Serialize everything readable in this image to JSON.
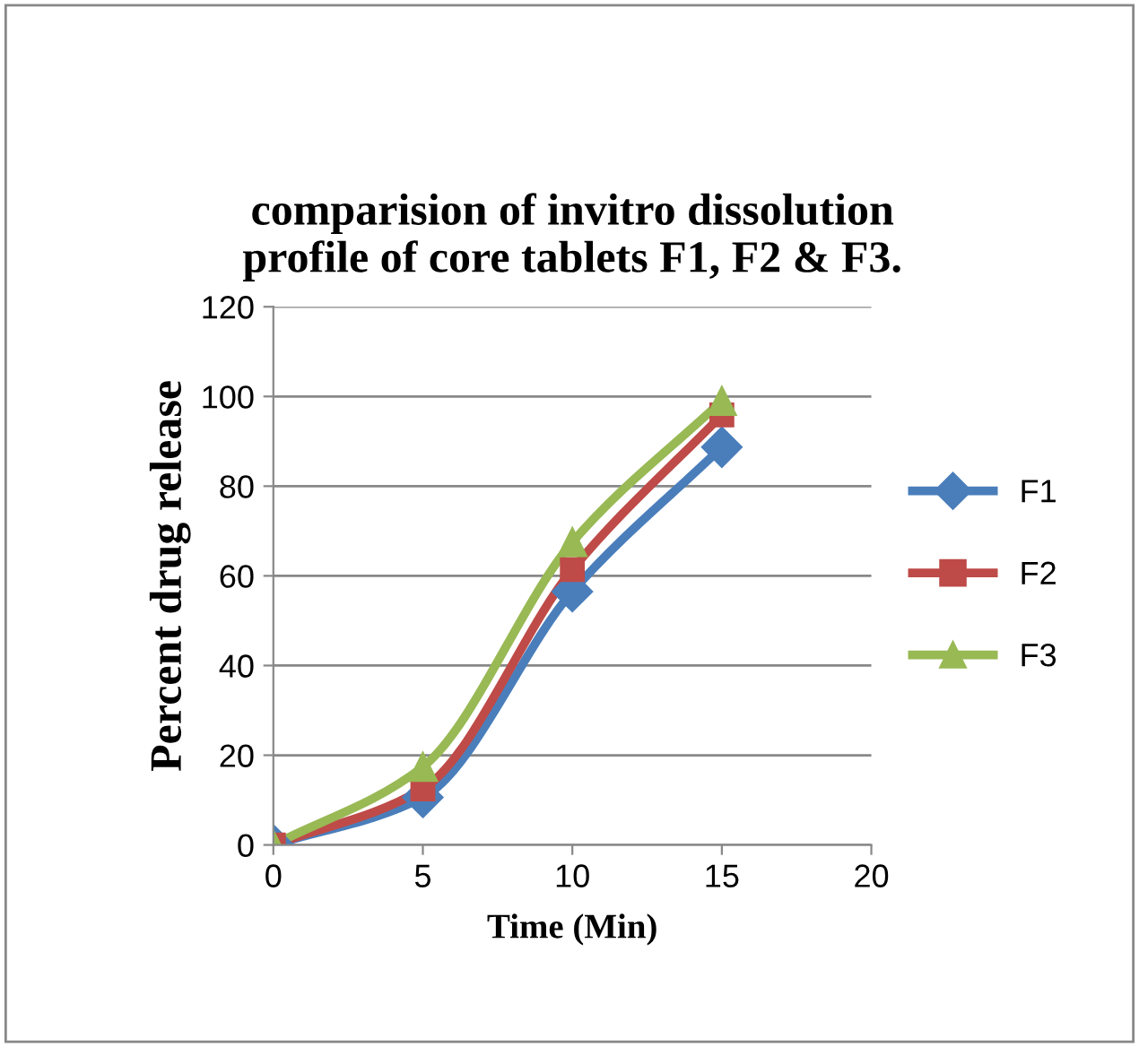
{
  "chart_data": {
    "type": "line",
    "title": "comparision of invitro dissolution\nprofile of core tablets F1, F2 & F3.",
    "xlabel": "Time (Min)",
    "ylabel": "Percent drug release",
    "x": [
      0,
      5,
      10,
      15
    ],
    "xlim": [
      0,
      20
    ],
    "xticks": [
      0,
      5,
      10,
      15,
      20
    ],
    "ylim": [
      0,
      120
    ],
    "yticks": [
      0,
      20,
      40,
      60,
      80,
      100,
      120
    ],
    "grid": "y",
    "legend": "right",
    "series": [
      {
        "name": "F1",
        "color": "#4a7ebb",
        "marker": "diamond",
        "values": [
          0,
          10.6,
          56.5,
          88.7
        ]
      },
      {
        "name": "F2",
        "color": "#be4b48",
        "marker": "square",
        "values": [
          0,
          12.5,
          61.4,
          95.9
        ]
      },
      {
        "name": "F3",
        "color": "#98b954",
        "marker": "triangle",
        "values": [
          0,
          17.4,
          67.5,
          99
        ]
      }
    ]
  }
}
